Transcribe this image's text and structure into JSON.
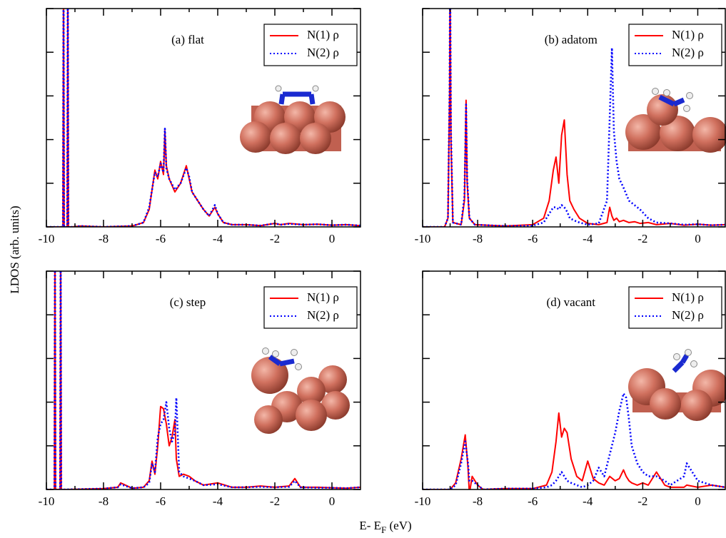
{
  "figure": {
    "ylabel": "LDOS (arb. units)",
    "xlabel_parts": [
      "E- E",
      "F",
      " (eV)"
    ]
  },
  "chart_data": [
    {
      "type": "line",
      "title": "(a) flat",
      "xlim": [
        -10,
        1
      ],
      "xticks": [
        -10,
        -8,
        -6,
        -4,
        -2,
        0
      ],
      "ylim": [
        0,
        5
      ],
      "yticks": [
        0,
        1,
        2,
        3,
        4,
        5
      ],
      "legend": "upper right",
      "x": [
        -10,
        -9.5,
        -9.42,
        -9.4,
        -9.38,
        -9.3,
        -9.27,
        -9.25,
        -9.23,
        -9.1,
        -8.8,
        -8,
        -7,
        -6.6,
        -6.4,
        -6.2,
        -6.1,
        -6.0,
        -5.9,
        -5.85,
        -5.8,
        -5.7,
        -5.5,
        -5.3,
        -5.1,
        -5.0,
        -4.9,
        -4.7,
        -4.5,
        -4.3,
        -4.1,
        -4.0,
        -3.8,
        -3.5,
        -3,
        -2.5,
        -2,
        -1.8,
        -1.5,
        -1,
        -0.5,
        0,
        0.5,
        1
      ],
      "series": [
        {
          "name": "N(1) ρ",
          "color": "#ff0000",
          "line_style": "solid",
          "values": [
            0,
            0,
            0,
            6,
            0,
            0,
            0,
            6,
            0,
            0,
            0.02,
            0,
            0.02,
            0.1,
            0.4,
            1.3,
            1.1,
            1.5,
            1.2,
            2.2,
            1.4,
            1.1,
            0.8,
            1.0,
            1.4,
            1.1,
            0.8,
            0.6,
            0.4,
            0.25,
            0.45,
            0.3,
            0.1,
            0.05,
            0.05,
            0.03,
            0.08,
            0.05,
            0.08,
            0.05,
            0.06,
            0.04,
            0.05,
            0.03
          ]
        },
        {
          "name": "N(2) ρ",
          "color": "#0000ff",
          "line_style": "dotted",
          "values": [
            0,
            0,
            0,
            6,
            0,
            0,
            0,
            6,
            0,
            0,
            0.02,
            0,
            0.02,
            0.1,
            0.45,
            1.25,
            1.15,
            1.45,
            1.25,
            2.25,
            1.35,
            1.1,
            0.85,
            1.0,
            1.35,
            1.15,
            0.8,
            0.6,
            0.4,
            0.25,
            0.5,
            0.3,
            0.1,
            0.05,
            0.05,
            0.03,
            0.08,
            0.05,
            0.07,
            0.05,
            0.06,
            0.04,
            0.05,
            0.03
          ]
        }
      ]
    },
    {
      "type": "line",
      "title": "(b) adatom",
      "xlim": [
        -10,
        1
      ],
      "xticks": [
        -10,
        -8,
        -6,
        -4,
        -2,
        0
      ],
      "ylim": [
        0,
        5
      ],
      "yticks": [
        0,
        1,
        2,
        3,
        4,
        5
      ],
      "legend": "upper right",
      "x": [
        -10,
        -9.2,
        -9.08,
        -9.02,
        -9.0,
        -8.97,
        -8.9,
        -8.6,
        -8.48,
        -8.42,
        -8.38,
        -8.3,
        -8.1,
        -7,
        -6,
        -5.6,
        -5.4,
        -5.25,
        -5.15,
        -5.05,
        -4.95,
        -4.85,
        -4.75,
        -4.65,
        -4.5,
        -4.3,
        -4.0,
        -3.6,
        -3.3,
        -3.2,
        -3.12,
        -3.05,
        -2.95,
        -2.85,
        -2.7,
        -2.5,
        -2.3,
        -2.1,
        -1.8,
        -1.5,
        -1,
        -0.5,
        0,
        0.5,
        1
      ],
      "series": [
        {
          "name": "N(1) ρ",
          "color": "#ff0000",
          "line_style": "solid",
          "values": [
            0,
            0,
            0.2,
            3,
            6,
            2,
            0.1,
            0.05,
            0.6,
            2.9,
            1.0,
            0.2,
            0.05,
            0.02,
            0.05,
            0.2,
            0.6,
            1.3,
            1.6,
            1.0,
            2.1,
            2.45,
            1.2,
            0.6,
            0.4,
            0.2,
            0.08,
            0.05,
            0.1,
            0.45,
            0.25,
            0.15,
            0.2,
            0.12,
            0.15,
            0.1,
            0.12,
            0.08,
            0.1,
            0.05,
            0.08,
            0.04,
            0.06,
            0.04,
            0.05
          ]
        },
        {
          "name": "N(2) ρ",
          "color": "#0000ff",
          "line_style": "dotted",
          "values": [
            0,
            0,
            0.2,
            3.2,
            6,
            2.2,
            0.1,
            0.05,
            0.7,
            2.8,
            1.1,
            0.2,
            0.05,
            0.02,
            0.03,
            0.1,
            0.3,
            0.45,
            0.45,
            0.4,
            0.5,
            0.45,
            0.35,
            0.2,
            0.15,
            0.1,
            0.05,
            0.08,
            0.6,
            2.5,
            4.1,
            2.2,
            1.5,
            1.1,
            0.9,
            0.6,
            0.5,
            0.4,
            0.2,
            0.1,
            0.08,
            0.05,
            0.06,
            0.04,
            0.05
          ]
        }
      ]
    },
    {
      "type": "line",
      "title": "(c) step",
      "xlim": [
        -10,
        1
      ],
      "xticks": [
        -10,
        -8,
        -6,
        -4,
        -2,
        0
      ],
      "ylim": [
        0,
        5
      ],
      "yticks": [
        0,
        1,
        2,
        3,
        4,
        5
      ],
      "legend": "upper right",
      "x": [
        -10,
        -9.8,
        -9.72,
        -9.7,
        -9.68,
        -9.55,
        -9.52,
        -9.5,
        -9.48,
        -9.3,
        -8,
        -7.5,
        -7.4,
        -7,
        -6.6,
        -6.4,
        -6.3,
        -6.2,
        -6.1,
        -6.0,
        -5.9,
        -5.8,
        -5.7,
        -5.6,
        -5.5,
        -5.45,
        -5.35,
        -5.2,
        -5.0,
        -4.8,
        -4.5,
        -4.0,
        -3.5,
        -3,
        -2.5,
        -2,
        -1.5,
        -1.3,
        -1.1,
        -0.5,
        0,
        0.5,
        1
      ],
      "series": [
        {
          "name": "N(1) ρ",
          "color": "#ff0000",
          "line_style": "solid",
          "values": [
            0,
            0,
            0,
            6,
            0,
            0,
            0,
            6,
            0,
            0,
            0.02,
            0.05,
            0.15,
            0.03,
            0.05,
            0.2,
            0.65,
            0.35,
            1.0,
            1.9,
            1.85,
            1.5,
            1.0,
            1.2,
            1.6,
            0.7,
            0.3,
            0.35,
            0.3,
            0.2,
            0.1,
            0.15,
            0.05,
            0.05,
            0.08,
            0.05,
            0.08,
            0.25,
            0.05,
            0.05,
            0.04,
            0.03,
            0.05
          ]
        },
        {
          "name": "N(2) ρ",
          "color": "#0000ff",
          "line_style": "dotted",
          "values": [
            0,
            0,
            0,
            6,
            0,
            0,
            0,
            6,
            0,
            0,
            0.02,
            0.05,
            0.12,
            0.03,
            0.05,
            0.15,
            0.6,
            0.4,
            1.2,
            1.5,
            1.6,
            2.0,
            1.4,
            1.1,
            1.3,
            2.1,
            0.4,
            0.3,
            0.25,
            0.2,
            0.1,
            0.12,
            0.05,
            0.05,
            0.06,
            0.05,
            0.06,
            0.2,
            0.05,
            0.04,
            0.04,
            0.03,
            0.05
          ]
        }
      ]
    },
    {
      "type": "line",
      "title": "(d) vacant",
      "xlim": [
        -10,
        1
      ],
      "xticks": [
        -10,
        -8,
        -6,
        -4,
        -2,
        0
      ],
      "ylim": [
        0,
        5
      ],
      "yticks": [
        0,
        1,
        2,
        3,
        4,
        5
      ],
      "legend": "upper right",
      "x": [
        -10,
        -9,
        -8.8,
        -8.6,
        -8.45,
        -8.35,
        -8.3,
        -8.2,
        -8.0,
        -7.8,
        -7,
        -6,
        -5.5,
        -5.3,
        -5.15,
        -5.05,
        -4.95,
        -4.85,
        -4.75,
        -4.6,
        -4.4,
        -4.2,
        -4.0,
        -3.8,
        -3.6,
        -3.4,
        -3.2,
        -3.0,
        -2.85,
        -2.7,
        -2.6,
        -2.5,
        -2.4,
        -2.2,
        -2.0,
        -1.8,
        -1.5,
        -1.2,
        -1.0,
        -0.5,
        -0.4,
        0,
        0.5,
        1
      ],
      "series": [
        {
          "name": "N(1) ρ",
          "color": "#ff0000",
          "line_style": "solid",
          "values": [
            0,
            0,
            0.15,
            0.7,
            1.25,
            0.5,
            -0.1,
            0.3,
            0.1,
            0,
            0.02,
            0.02,
            0.1,
            0.4,
            1.1,
            1.75,
            1.2,
            1.4,
            1.3,
            0.7,
            0.3,
            0.2,
            0.65,
            0.25,
            0.15,
            0.1,
            0.3,
            0.2,
            0.25,
            0.45,
            0.3,
            0.2,
            0.15,
            0.1,
            0.15,
            0.1,
            0.4,
            0.1,
            0.05,
            0.05,
            0.1,
            0.05,
            0.1,
            0.05
          ]
        },
        {
          "name": "N(2) ρ",
          "color": "#0000ff",
          "line_style": "dotted",
          "values": [
            0,
            0,
            0.1,
            0.6,
            1.1,
            0.6,
            0.2,
            0.2,
            0.1,
            0,
            0.02,
            0.02,
            0.05,
            0.1,
            0.2,
            0.3,
            0.4,
            0.3,
            0.2,
            0.15,
            0.1,
            0.05,
            0.1,
            0.2,
            0.5,
            0.3,
            0.8,
            1.3,
            1.8,
            2.2,
            2.1,
            1.6,
            1.0,
            0.6,
            0.4,
            0.3,
            0.3,
            0.2,
            0.1,
            0.3,
            0.6,
            0.2,
            0.1,
            0.05
          ]
        }
      ]
    }
  ]
}
